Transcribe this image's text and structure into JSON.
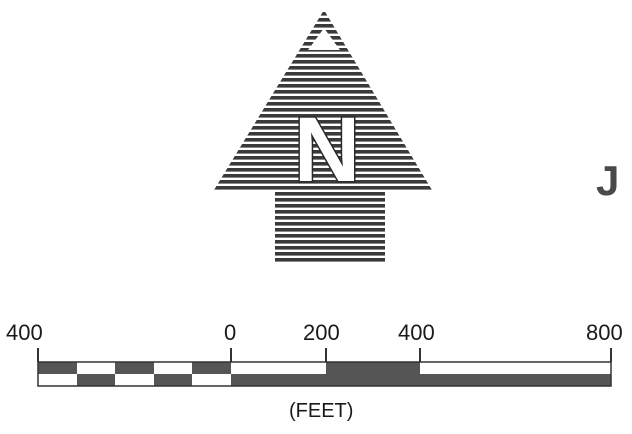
{
  "north_arrow": {
    "letter": "N",
    "stripe_color": "#3a3a3a"
  },
  "scale_bar": {
    "tick_labels": [
      "400",
      "0",
      "200",
      "400",
      "800"
    ],
    "units": "(FEET)",
    "dark_color": "#555555",
    "light_color": "#ffffff"
  },
  "panel_letter": "J"
}
